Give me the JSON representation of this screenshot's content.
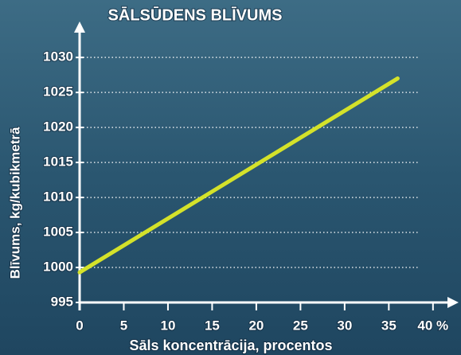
{
  "chart_data": {
    "type": "line",
    "title": "SĀLSŪDENS BLĪVUMS",
    "x_label": "Sāls koncentrācija, procentos",
    "y_label": "Blīvums, kg/kubikmetrā",
    "series": [
      {
        "name": "Blīvums",
        "color": "#d4e22a",
        "x": [
          0,
          36
        ],
        "values": [
          999.3,
          1027
        ]
      }
    ],
    "xlim": [
      0,
      42
    ],
    "ylim": [
      995,
      1034
    ],
    "xticks": [
      0,
      5,
      10,
      15,
      20,
      25,
      30,
      35,
      {
        "value": 40,
        "label": "40 %"
      }
    ],
    "yticks": [
      995,
      1000,
      1005,
      1010,
      1015,
      1020,
      1025,
      1030
    ],
    "grid": true
  }
}
